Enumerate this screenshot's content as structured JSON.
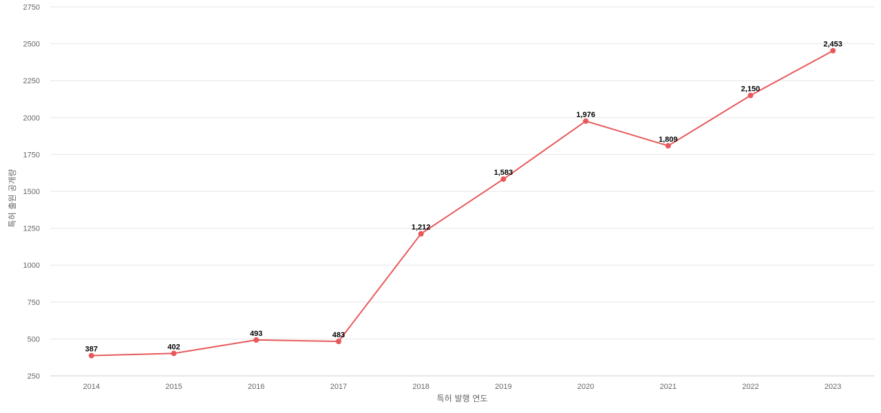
{
  "chart_data": {
    "type": "line",
    "title": "",
    "xlabel": "특허 발행 연도",
    "ylabel": "특허 출원 공개량",
    "categories": [
      "2014",
      "2015",
      "2016",
      "2017",
      "2018",
      "2019",
      "2020",
      "2021",
      "2022",
      "2023"
    ],
    "series": [
      {
        "values": [
          387,
          402,
          493,
          483,
          1212,
          1583,
          1976,
          1809,
          2150,
          2453
        ],
        "value_labels": [
          "387",
          "402",
          "493",
          "483",
          "1,212",
          "1,583",
          "1,976",
          "1,809",
          "2,150",
          "2,453"
        ],
        "color": "#e8585a"
      }
    ],
    "ylim": [
      250,
      2750
    ],
    "yticks": [
      "250",
      "500",
      "750",
      "1000",
      "1250",
      "1500",
      "1750",
      "2000",
      "2250",
      "2500",
      "2750"
    ],
    "grid": true,
    "legend": "none"
  }
}
